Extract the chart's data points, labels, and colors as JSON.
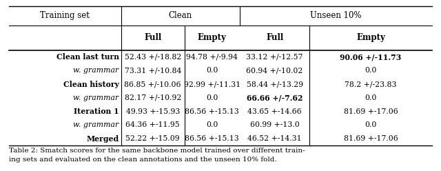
{
  "title_line1": "Table 2: Smatch scores for the same backbone model trained over different train-",
  "title_line2": "ing sets and evaluated on the clean annotations and the unseen 10% fold.",
  "header1": [
    "Training set",
    "Clean",
    "Unseen 10%"
  ],
  "header2": [
    "Full",
    "Empty",
    "Full",
    "Empty"
  ],
  "rows": [
    {
      "label": "Clean last turn",
      "bold_label": true,
      "italic": false,
      "cols": [
        "52.43 +/-18.82",
        "94.78 +/-9.94",
        "33.12 +/-12.57",
        "90.06 +/-11.73"
      ],
      "bold_cols": [
        false,
        false,
        false,
        true
      ]
    },
    {
      "label": "w. grammar",
      "bold_label": false,
      "italic": true,
      "cols": [
        "73.31 +/-10.84",
        "0.0",
        "60.94 +/-10.02",
        "0.0"
      ],
      "bold_cols": [
        false,
        false,
        false,
        false
      ]
    },
    {
      "label": "Clean history",
      "bold_label": true,
      "italic": false,
      "cols": [
        "86.85 +/-10.06",
        "92.99 +/-11.31",
        "58.44 +/-13.29",
        "78.2 +/-23.83"
      ],
      "bold_cols": [
        false,
        false,
        false,
        false
      ]
    },
    {
      "label": "w. grammar",
      "bold_label": false,
      "italic": true,
      "cols": [
        "82.17 +/-10.92",
        "0.0",
        "66.66 +/-7.62",
        "0.0"
      ],
      "bold_cols": [
        false,
        false,
        true,
        false
      ]
    },
    {
      "label": "Iteration 1",
      "bold_label": true,
      "italic": false,
      "cols": [
        "49.93 +-15.93",
        "86.56 +-15.13",
        "43.65 +-14.66",
        "81.69 +-17.06"
      ],
      "bold_cols": [
        false,
        false,
        false,
        false
      ]
    },
    {
      "label": "w. grammar",
      "bold_label": false,
      "italic": true,
      "cols": [
        "64.36 +-11.95",
        "0.0",
        "60.99 +-13.0",
        "0.0"
      ],
      "bold_cols": [
        false,
        false,
        false,
        false
      ]
    },
    {
      "label": "Merged",
      "bold_label": true,
      "italic": false,
      "cols": [
        "52.22 +-15.09",
        "86.56 +-15.13",
        "46.52 +-14.31",
        "81.69 +-17.06"
      ],
      "bold_cols": [
        false,
        false,
        false,
        false
      ]
    }
  ],
  "bg_color": "#ffffff",
  "fs_header": 8.5,
  "fs_data": 7.8,
  "fs_caption": 7.5
}
